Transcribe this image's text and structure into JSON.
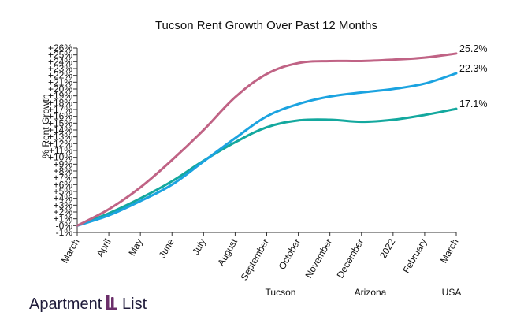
{
  "chart_data": {
    "type": "line",
    "title": "Tucson Rent Growth Over Past 12 Months",
    "ylabel": "% Rent Growth",
    "ylim": [
      -1,
      26
    ],
    "yticks": [
      "-1%",
      "-0%",
      "+1%",
      "+2%",
      "+3%",
      "+4%",
      "+5%",
      "+6%",
      "+7%",
      "+8%",
      "+9%",
      "+10%",
      "+11%",
      "+12%",
      "+13%",
      "+14%",
      "+15%",
      "+16%",
      "+17%",
      "+18%",
      "+19%",
      "+20%",
      "+21%",
      "+22%",
      "+23%",
      "+24%",
      "+25%",
      "+26%"
    ],
    "ytick_values": [
      -1,
      0,
      1,
      2,
      3,
      4,
      5,
      6,
      7,
      8,
      9,
      10,
      11,
      12,
      13,
      14,
      15,
      16,
      17,
      18,
      19,
      20,
      21,
      22,
      23,
      24,
      25,
      26
    ],
    "categories": [
      "March",
      "April",
      "May",
      "June",
      "July",
      "August",
      "September",
      "October",
      "November",
      "December",
      "2022",
      "February",
      "March"
    ],
    "series": [
      {
        "name": "Tucson",
        "color": "#13a89e",
        "end_label": "17.1%",
        "values": [
          0,
          1.8,
          4.0,
          6.5,
          9.5,
          12.2,
          14.4,
          15.4,
          15.5,
          15.2,
          15.5,
          16.2,
          17.1
        ]
      },
      {
        "name": "Arizona",
        "color": "#1ba3e0",
        "end_label": "22.3%",
        "values": [
          0,
          1.5,
          3.6,
          6.0,
          9.4,
          12.8,
          16.0,
          17.8,
          18.9,
          19.5,
          20.0,
          20.8,
          22.3
        ]
      },
      {
        "name": "USA",
        "color": "#c06385",
        "end_label": "25.2%",
        "values": [
          0,
          2.4,
          5.6,
          9.6,
          14.0,
          18.8,
          22.2,
          23.8,
          24.1,
          24.1,
          24.3,
          24.6,
          25.2
        ]
      }
    ],
    "grid": false,
    "legend_position": "bottom"
  },
  "brand": {
    "name": "Apartment List"
  }
}
